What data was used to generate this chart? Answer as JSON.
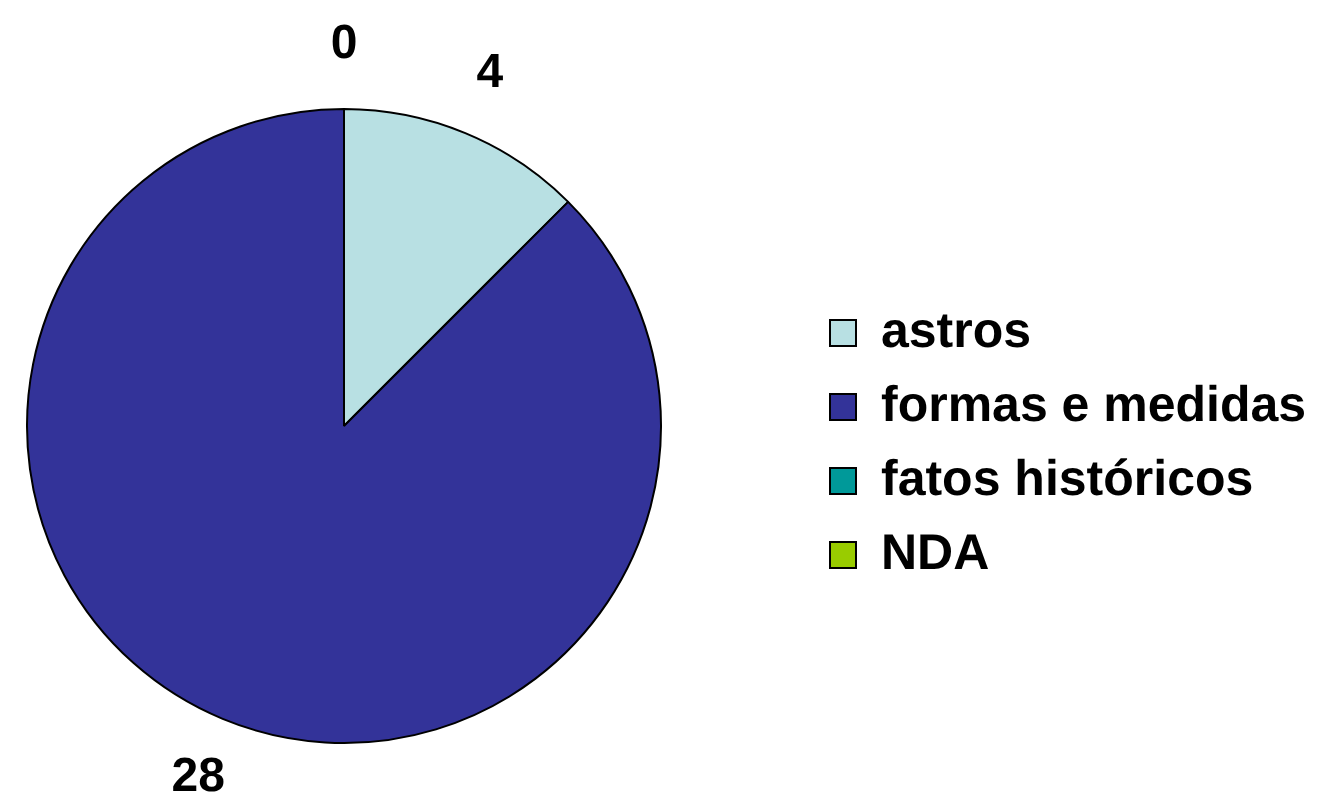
{
  "chart_data": {
    "type": "pie",
    "categories": [
      "astros",
      "formas e medidas",
      "fatos históricos",
      "NDA"
    ],
    "values": [
      4,
      28,
      0,
      0
    ],
    "colors": [
      "#b8e0e3",
      "#333399",
      "#009999",
      "#99cc00"
    ],
    "value_labels": [
      "4",
      "28",
      "0",
      null
    ],
    "legend": "right"
  }
}
